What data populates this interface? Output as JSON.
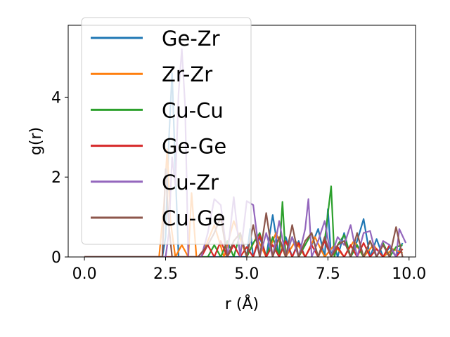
{
  "chart_data": {
    "type": "line",
    "title": "",
    "xlabel": "r (Å)",
    "ylabel": "g(r)",
    "xlim": [
      -0.5,
      10.2
    ],
    "ylim": [
      0,
      5.8
    ],
    "xticks": [
      0.0,
      2.5,
      5.0,
      7.5,
      10.0
    ],
    "xtick_labels": [
      "0.0",
      "2.5",
      "5.0",
      "7.5",
      "10.0"
    ],
    "yticks": [
      0,
      2,
      4
    ],
    "ytick_labels": [
      "0",
      "2",
      "4"
    ],
    "grid": false,
    "legend_position": "upper-left",
    "series": [
      {
        "name": "Ge-Zr",
        "color": "#1f77b4",
        "x": [
          0.0,
          2.4,
          2.5,
          2.6,
          2.7,
          2.8,
          2.9,
          5.0,
          5.1,
          5.2,
          5.4,
          5.6,
          5.8,
          6.0,
          6.2,
          6.4,
          6.6,
          6.8,
          7.0,
          7.2,
          7.4,
          7.5,
          7.6,
          7.7,
          7.8,
          8.0,
          8.2,
          8.4,
          8.6,
          8.8,
          9.0,
          9.2,
          9.4,
          9.6,
          9.8
        ],
        "y": [
          0.0,
          0.0,
          0.5,
          2.9,
          4.6,
          2.2,
          0.0,
          0.0,
          0.7,
          0.0,
          0.5,
          0.0,
          1.05,
          0.0,
          0.5,
          0.0,
          0.4,
          0.0,
          0.3,
          0.7,
          0.0,
          1.2,
          0.0,
          0.3,
          0.0,
          0.6,
          0.0,
          0.4,
          0.95,
          0.0,
          0.45,
          0.0,
          0.25,
          0.0,
          0.35
        ]
      },
      {
        "name": "Zr-Zr",
        "color": "#ff7f0e",
        "x": [
          0.0,
          2.3,
          2.45,
          2.55,
          2.65,
          2.8,
          3.0,
          3.2,
          3.3,
          3.45,
          3.6,
          4.0,
          4.3,
          4.6,
          5.0,
          5.3,
          5.6,
          5.9,
          6.2,
          6.5,
          6.8,
          7.1,
          7.4,
          7.7,
          8.0,
          8.3,
          8.6,
          8.9,
          9.2,
          9.5,
          9.8
        ],
        "y": [
          0.0,
          0.0,
          1.3,
          2.7,
          0.9,
          0.0,
          0.3,
          0.0,
          1.6,
          0.0,
          0.0,
          0.8,
          0.0,
          0.9,
          0.0,
          0.5,
          0.0,
          0.6,
          0.0,
          0.4,
          0.0,
          0.5,
          0.0,
          0.3,
          0.0,
          0.4,
          0.0,
          0.3,
          0.0,
          0.2,
          0.1
        ]
      },
      {
        "name": "Cu-Cu",
        "color": "#2ca02c",
        "x": [
          0.0,
          3.8,
          4.0,
          4.2,
          4.4,
          4.6,
          4.8,
          5.0,
          5.2,
          5.4,
          5.6,
          5.8,
          6.0,
          6.1,
          6.2,
          6.4,
          6.6,
          6.8,
          7.0,
          7.2,
          7.4,
          7.6,
          7.7,
          7.8,
          8.0,
          8.2,
          8.4,
          8.6,
          8.8,
          9.0,
          9.2,
          9.4,
          9.6,
          9.8
        ],
        "y": [
          0.0,
          0.0,
          0.3,
          0.0,
          0.4,
          0.0,
          0.6,
          0.0,
          0.35,
          0.6,
          0.0,
          0.5,
          0.0,
          1.38,
          0.0,
          0.5,
          0.0,
          0.3,
          0.6,
          0.0,
          0.4,
          1.77,
          0.0,
          0.3,
          0.55,
          0.0,
          0.3,
          0.0,
          0.4,
          0.0,
          0.35,
          0.0,
          0.25,
          0.3
        ]
      },
      {
        "name": "Ge-Ge",
        "color": "#d62728",
        "x": [
          0.0,
          3.6,
          3.8,
          4.0,
          4.2,
          4.4,
          4.6,
          4.8,
          5.0,
          5.2,
          5.4,
          5.6,
          5.8,
          6.0,
          6.2,
          6.4,
          6.6,
          6.8,
          7.0,
          7.2,
          7.4,
          7.6,
          7.8,
          8.0,
          8.2,
          8.4,
          8.6,
          8.8,
          9.0,
          9.2,
          9.4,
          9.6,
          9.8
        ],
        "y": [
          0.0,
          0.0,
          0.3,
          0.0,
          0.4,
          0.0,
          0.3,
          0.0,
          0.25,
          0.0,
          0.55,
          0.0,
          0.3,
          0.0,
          0.4,
          0.0,
          0.35,
          0.0,
          0.3,
          0.0,
          0.4,
          0.0,
          0.25,
          0.0,
          0.3,
          0.0,
          0.35,
          0.0,
          0.2,
          0.0,
          0.3,
          0.0,
          0.2
        ]
      },
      {
        "name": "Cu-Zr",
        "color": "#9467bd",
        "x": [
          0.0,
          2.5,
          2.6,
          2.7,
          2.8,
          2.9,
          3.0,
          3.1,
          3.2,
          3.6,
          3.8,
          4.0,
          4.2,
          4.4,
          4.6,
          4.8,
          5.0,
          5.2,
          5.4,
          5.6,
          5.8,
          6.0,
          6.2,
          6.4,
          6.6,
          6.8,
          6.9,
          7.0,
          7.2,
          7.4,
          7.6,
          7.8,
          8.0,
          8.2,
          8.4,
          8.6,
          8.8,
          9.0,
          9.2,
          9.4,
          9.6,
          9.7,
          9.9
        ],
        "y": [
          0.0,
          0.0,
          0.6,
          2.5,
          1.8,
          4.1,
          5.2,
          3.8,
          0.0,
          0.0,
          0.6,
          1.45,
          1.3,
          0.0,
          1.5,
          0.0,
          1.4,
          1.3,
          0.0,
          0.6,
          0.0,
          0.9,
          0.0,
          0.5,
          0.0,
          0.7,
          1.45,
          0.0,
          0.4,
          0.9,
          0.0,
          0.5,
          0.3,
          0.8,
          0.0,
          0.6,
          0.65,
          0.0,
          0.4,
          0.3,
          0.0,
          0.7,
          0.35
        ]
      },
      {
        "name": "Cu-Ge",
        "color": "#8c564b",
        "x": [
          0.0,
          2.4,
          2.5,
          2.6,
          2.7,
          3.0,
          3.5,
          3.8,
          4.0,
          4.2,
          4.4,
          4.6,
          4.8,
          5.0,
          5.2,
          5.4,
          5.6,
          5.8,
          6.0,
          6.2,
          6.4,
          6.6,
          6.8,
          7.0,
          7.2,
          7.4,
          7.6,
          7.8,
          8.0,
          8.2,
          8.4,
          8.6,
          8.8,
          9.0,
          9.2,
          9.4,
          9.6,
          9.8
        ],
        "y": [
          0.0,
          0.0,
          2.2,
          0.8,
          0.0,
          0.0,
          0.0,
          0.3,
          0.6,
          1.0,
          0.0,
          0.4,
          0.6,
          0.0,
          0.8,
          0.0,
          1.1,
          0.0,
          0.5,
          0.0,
          0.8,
          0.0,
          0.4,
          0.6,
          0.0,
          0.5,
          0.0,
          0.3,
          0.4,
          0.0,
          0.6,
          0.0,
          0.4,
          0.0,
          0.3,
          0.0,
          0.75,
          0.0
        ]
      }
    ]
  }
}
